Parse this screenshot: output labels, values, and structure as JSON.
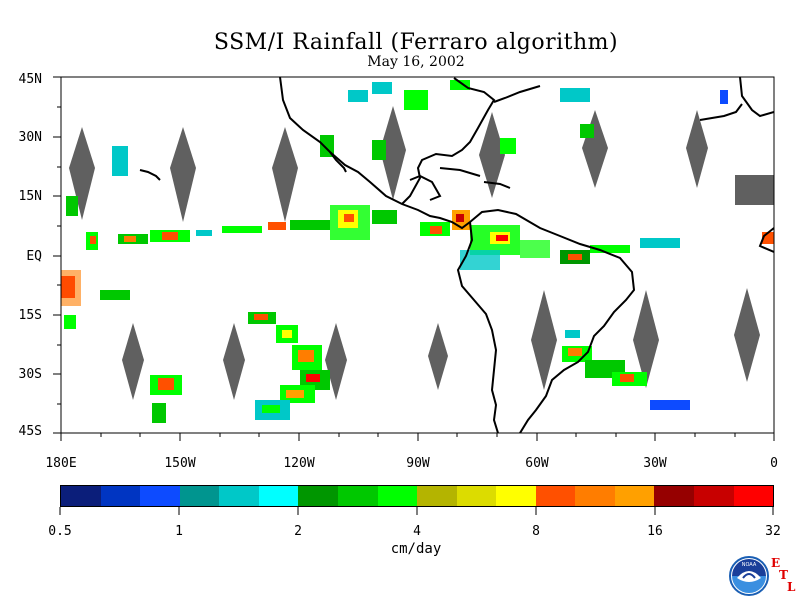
{
  "title": "SSM/I Rainfall (Ferraro algorithm)",
  "subtitle": "May 16, 2002",
  "lat_labels": [
    "45N",
    "30N",
    "15N",
    "EQ",
    "15S",
    "30S",
    "45S"
  ],
  "lon_labels": [
    "180E",
    "150W",
    "120W",
    "90W",
    "60W",
    "30W",
    "0"
  ],
  "colorbar": {
    "tick_labels": [
      "0.5",
      "1",
      "2",
      "4",
      "8",
      "16",
      "32"
    ],
    "units": "cm/day",
    "colors": [
      "#0b1e7a",
      "#0035c2",
      "#0d4bff",
      "#00958f",
      "#00c8c8",
      "#00ffff",
      "#009600",
      "#00c800",
      "#00ff00",
      "#b4b400",
      "#dcdc00",
      "#ffff00",
      "#ff5000",
      "#ff7d00",
      "#ffa000",
      "#960000",
      "#c80000",
      "#ff0000"
    ]
  },
  "logo": {
    "noaa_text": "NOAA",
    "etl": [
      "E",
      "T",
      "L"
    ]
  },
  "colors": {
    "coastline": "#000000",
    "swath_gap": "#606060"
  }
}
